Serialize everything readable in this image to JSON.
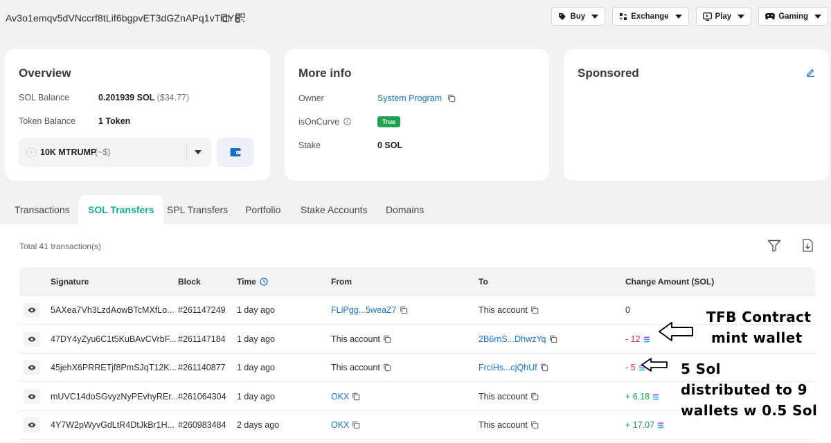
{
  "header": {
    "address": "Av3o1emqv5dVNccrf8tLif6bgpvET3dGZnAPq1vTidYB",
    "nav": [
      {
        "label": "Buy",
        "icon": "tag-icon"
      },
      {
        "label": "Exchange",
        "icon": "swap-icon"
      },
      {
        "label": "Play",
        "icon": "play-icon"
      },
      {
        "label": "Gaming",
        "icon": "gamepad-icon"
      }
    ]
  },
  "overview": {
    "title": "Overview",
    "sol_balance_label": "SOL Balance",
    "sol_balance_value": "0.201939 SOL",
    "sol_balance_usd": "($34.77)",
    "token_balance_label": "Token Balance",
    "token_balance_value": "1 Token",
    "token_select_name": "10K MTRUMP",
    "token_select_value": "(~$)"
  },
  "more_info": {
    "title": "More info",
    "owner_label": "Owner",
    "owner_value": "System Program",
    "is_on_curve_label": "isOnCurve",
    "is_on_curve_value": "True",
    "stake_label": "Stake",
    "stake_value": "0 SOL"
  },
  "sponsored": {
    "title": "Sponsored"
  },
  "tabs": [
    "Transactions",
    "SOL Transfers",
    "SPL Transfers",
    "Portfolio",
    "Stake Accounts",
    "Domains"
  ],
  "active_tab": "SOL Transfers",
  "transfers": {
    "total": "Total 41 transaction(s)",
    "columns": [
      "Signature",
      "Block",
      "Time",
      "From",
      "To",
      "Change Amount (SOL)"
    ],
    "rows": [
      {
        "signature": "5AXea7Vh3LzdAowBTcMXfLo...",
        "block": "#261147249",
        "time": "1 day ago",
        "from": "FLiPgg...5weaZ7",
        "to": "This account",
        "change": "0",
        "sign": "zero"
      },
      {
        "signature": "47DY4yZyu6C1t5KuBAvCVrbF...",
        "block": "#261147184",
        "time": "1 day ago",
        "from": "This account",
        "to": "2B6rnS...DhwzYq",
        "change": "- 12",
        "sign": "neg"
      },
      {
        "signature": "45jehX6PRRETjf8PmSJqT12K...",
        "block": "#261140877",
        "time": "1 day ago",
        "from": "This account",
        "to": "FrciHs...cjQhUf",
        "change": "- 5",
        "sign": "neg"
      },
      {
        "signature": "mUVC14doSGvyzNyPEvhyREr...",
        "block": "#261064304",
        "time": "1 day ago",
        "from": "OKX",
        "to": "This account",
        "change": "+ 6.18",
        "sign": "pos"
      },
      {
        "signature": "4Y7W2pWyvGdLtR4DtJkBr1H...",
        "block": "#260983484",
        "time": "2 days ago",
        "from": "OKX",
        "to": "This account",
        "change": "+ 17.07",
        "sign": "pos"
      }
    ]
  },
  "annotations": {
    "note1_line1": "TFB Contract",
    "note1_line2": "mint wallet",
    "note2_line1": "5 Sol",
    "note2_line2": "distributed to 9",
    "note2_line3": "wallets w 0.5 Sol"
  }
}
